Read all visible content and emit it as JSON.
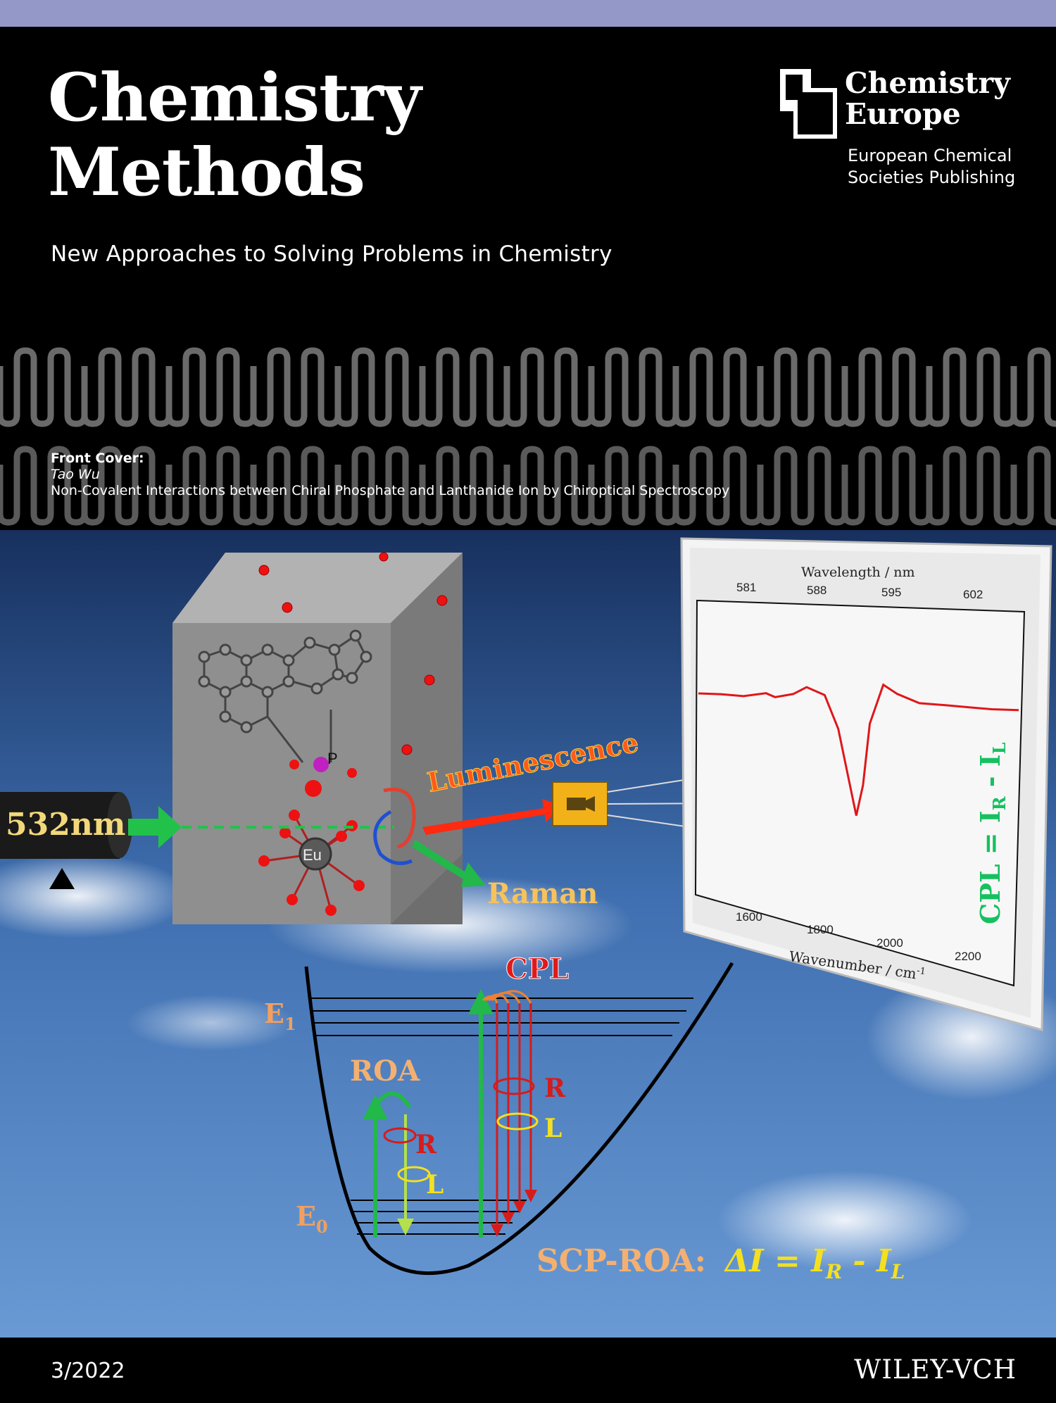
{
  "header": {
    "title_line1": "Chemistry",
    "title_line2": "Methods",
    "tagline": "New Approaches to Solving Problems in Chemistry",
    "publisher_line1": "Chemistry",
    "publisher_line2": "Europe",
    "publisher_sub1": "European Chemical",
    "publisher_sub2": "Societies Publishing"
  },
  "credits": {
    "label": "Front Cover:",
    "author": "Tao Wu",
    "article_title": "Non-Covalent Interactions between Chiral Phosphate and Lanthanide Ion by Chiroptical Spectroscopy"
  },
  "artwork": {
    "laser": "532nm",
    "luminescence": "Luminescence",
    "raman": "Raman",
    "atom_p": "P",
    "atom_eu": "Eu",
    "cpl_formula": "CPL = I",
    "cpl_sub_r": "R",
    "cpl_dash": " - I",
    "cpl_sub_l": "L",
    "cpl_label": "CPL",
    "e1": "E",
    "e1_sub": "1",
    "e0": "E",
    "e0_sub": "0",
    "roa": "ROA",
    "r_left": "R",
    "l_left": "L",
    "r_right": "R",
    "l_right": "L",
    "scp_label": "SCP-ROA:",
    "scp_formula": "ΔI = I",
    "scp_sub_r": "R",
    "scp_dash": " - I",
    "scp_sub_l": "L",
    "colors": {
      "sky_top": "#17305e",
      "sky_bottom": "#6a9ad4",
      "laser_green": "#1fc34a",
      "beam_red": "#ff2a10",
      "label_orange": "#f6c25c"
    }
  },
  "chart_data": {
    "type": "line",
    "xlabel": "Wavenumber / cm",
    "xlabel_sup": "-1",
    "top_label": "Wavelength / nm",
    "x_ticks": [
      "1600",
      "1800",
      "2000",
      "2200"
    ],
    "top_ticks": [
      "581",
      "588",
      "595",
      "602"
    ],
    "series": [
      {
        "x": [
          1550,
          1600,
          1650,
          1700,
          1720,
          1760,
          1790,
          1830,
          1860,
          1880,
          1900,
          1915,
          1930,
          1960,
          1990,
          2040,
          2100,
          2150,
          2200,
          2260
        ],
        "y": [
          0,
          0,
          -0.01,
          0.02,
          -0.01,
          0.02,
          0.08,
          0.02,
          -0.25,
          -0.6,
          -0.95,
          -0.7,
          -0.2,
          0.12,
          0.05,
          -0.02,
          -0.03,
          -0.04,
          -0.05,
          -0.05
        ]
      }
    ]
  },
  "footer": {
    "issue": "3/2022",
    "publisher": "WILEY-VCH"
  }
}
